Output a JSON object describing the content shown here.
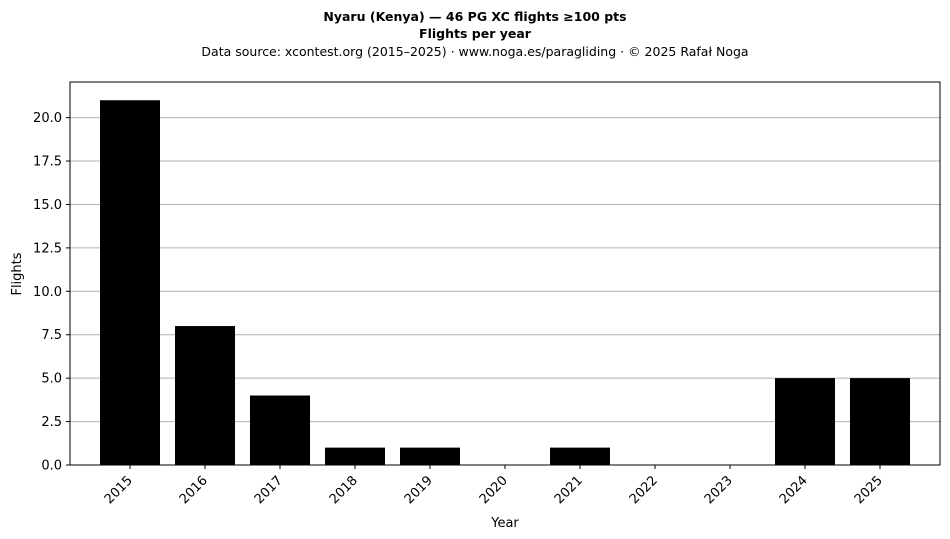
{
  "chart_data": {
    "type": "bar",
    "title_line1": "Nyaru (Kenya)  —  46 PG XC flights ≥100 pts",
    "title_line2": "Flights per year",
    "subtitle": "Data source: xcontest.org (2015–2025)  ·  www.noga.es/paragliding  ·  © 2025 Rafał Noga",
    "xlabel": "Year",
    "ylabel": "Flights",
    "categories": [
      "2015",
      "2016",
      "2017",
      "2018",
      "2019",
      "2020",
      "2021",
      "2022",
      "2023",
      "2024",
      "2025"
    ],
    "values": [
      21,
      8,
      4,
      1,
      1,
      0,
      1,
      0,
      0,
      5,
      5
    ],
    "ylim": [
      0,
      22.05
    ],
    "yticks": [
      "0.0",
      "2.5",
      "5.0",
      "7.5",
      "10.0",
      "12.5",
      "15.0",
      "17.5",
      "20.0"
    ],
    "grid": "horizontal",
    "legend": "none",
    "bar_color": "#000000",
    "grid_color": "#b0b0b0"
  }
}
